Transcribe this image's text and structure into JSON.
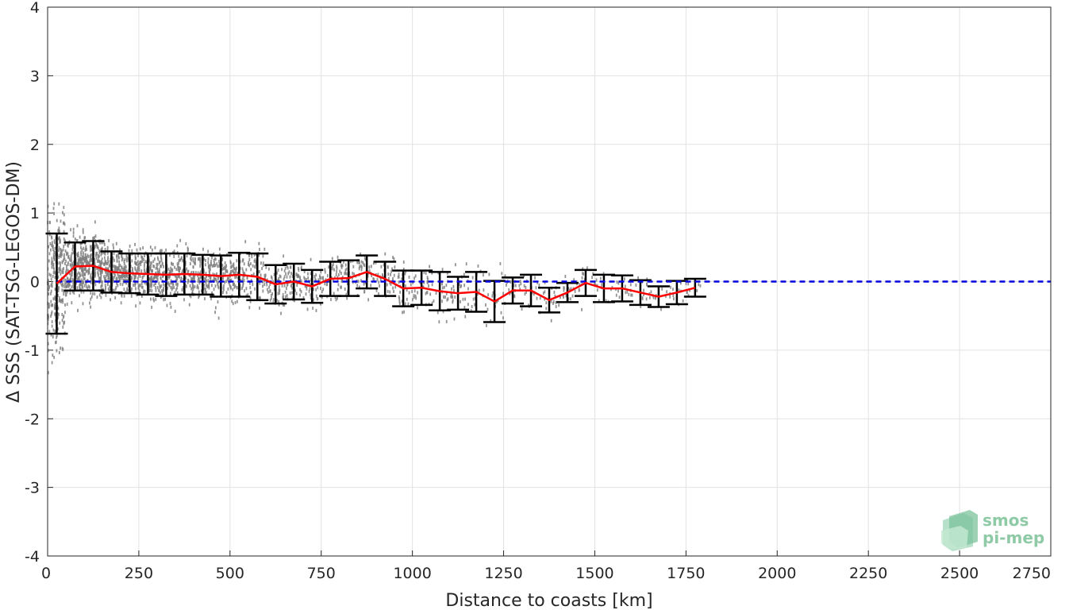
{
  "chart_data": {
    "type": "scatter",
    "xlabel": "Distance to coasts [km]",
    "ylabel": "Δ SSS (SAT-TSG-LEGOS-DM)",
    "xlim": [
      0,
      2750
    ],
    "ylim": [
      -4,
      4
    ],
    "xticks": [
      0,
      250,
      500,
      750,
      1000,
      1250,
      1500,
      1750,
      2000,
      2250,
      2500,
      2750
    ],
    "yticks": [
      -4,
      -3,
      -2,
      -1,
      0,
      1,
      2,
      3,
      4
    ],
    "grid": true,
    "zero_line": {
      "y": 0,
      "color": "#0000dd",
      "style": "dashed"
    },
    "scatter_color": "#808080",
    "mean_line_color": "#ff0000",
    "errorbar_color": "#000000",
    "binned": {
      "x": [
        25,
        75,
        125,
        175,
        225,
        275,
        325,
        375,
        425,
        475,
        525,
        575,
        625,
        675,
        725,
        775,
        825,
        875,
        925,
        975,
        1025,
        1075,
        1125,
        1175,
        1225,
        1275,
        1325,
        1375,
        1425,
        1475,
        1525,
        1575,
        1625,
        1675,
        1725,
        1775
      ],
      "mean": [
        -0.03,
        0.22,
        0.23,
        0.14,
        0.12,
        0.11,
        0.1,
        0.11,
        0.1,
        0.08,
        0.1,
        0.07,
        -0.04,
        0.0,
        -0.07,
        0.04,
        0.05,
        0.14,
        0.04,
        -0.1,
        -0.09,
        -0.14,
        -0.17,
        -0.15,
        -0.29,
        -0.13,
        -0.13,
        -0.27,
        -0.16,
        -0.02,
        -0.1,
        -0.1,
        -0.16,
        -0.22,
        -0.16,
        -0.09
      ],
      "std": [
        0.73,
        0.35,
        0.36,
        0.3,
        0.29,
        0.3,
        0.31,
        0.3,
        0.29,
        0.3,
        0.32,
        0.34,
        0.28,
        0.26,
        0.24,
        0.25,
        0.26,
        0.24,
        0.25,
        0.26,
        0.25,
        0.28,
        0.24,
        0.29,
        0.3,
        0.19,
        0.23,
        0.18,
        0.14,
        0.19,
        0.2,
        0.19,
        0.18,
        0.15,
        0.17,
        0.13
      ]
    }
  },
  "logo": {
    "line1": "smos",
    "line2": "pi-mep",
    "color": "#8fcaa6"
  }
}
